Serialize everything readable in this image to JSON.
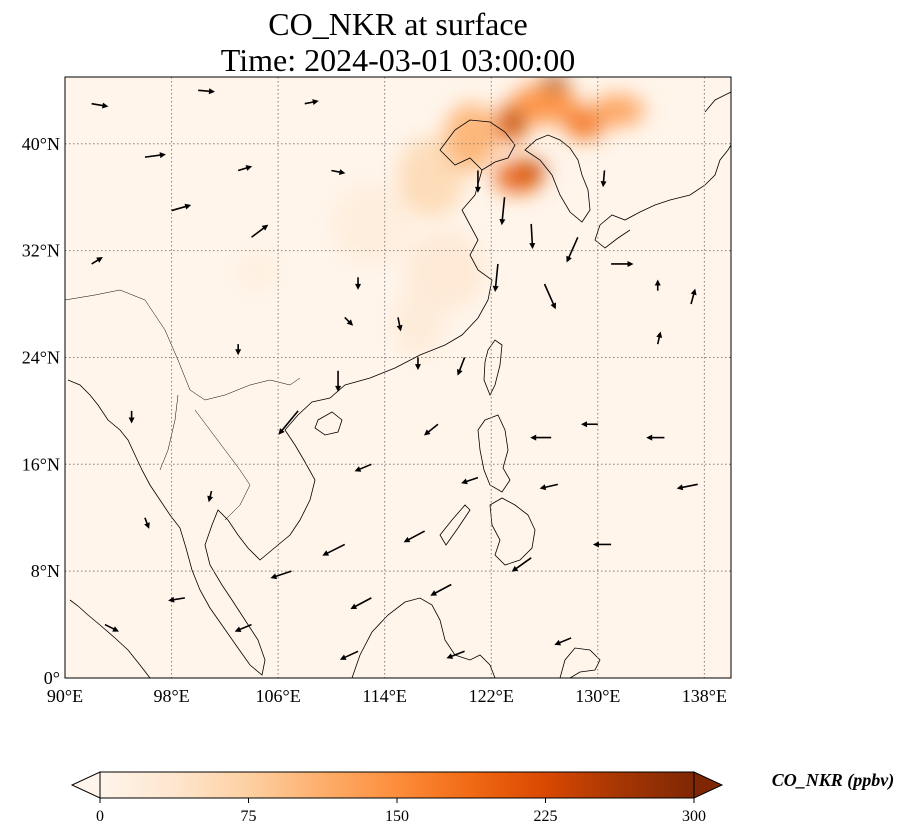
{
  "title": {
    "line1": "CO_NKR at surface",
    "line2": "Time: 2024-03-01 03:00:00"
  },
  "map": {
    "extent": {
      "lon": [
        90,
        140
      ],
      "lat": [
        0,
        45
      ]
    },
    "lon_ticks": [
      {
        "value": 90,
        "label": "90°E"
      },
      {
        "value": 98,
        "label": "98°E"
      },
      {
        "value": 106,
        "label": "106°E"
      },
      {
        "value": 114,
        "label": "114°E"
      },
      {
        "value": 122,
        "label": "122°E"
      },
      {
        "value": 130,
        "label": "130°E"
      },
      {
        "value": 138,
        "label": "138°E"
      }
    ],
    "lat_ticks": [
      {
        "value": 0,
        "label": "0°"
      },
      {
        "value": 8,
        "label": "8°N"
      },
      {
        "value": 16,
        "label": "16°N"
      },
      {
        "value": 24,
        "label": "24°N"
      },
      {
        "value": 32,
        "label": "32°N"
      },
      {
        "value": 40,
        "label": "40°N"
      }
    ],
    "gridlines": true,
    "colors": {
      "background": "#fff5eb",
      "coast": "#000000",
      "grid": "#808080",
      "wind": "#000000"
    },
    "plumes": [
      {
        "lon": 117.5,
        "lat": 37.5,
        "rlon": 2.5,
        "rlat": 3.0,
        "value": 60
      },
      {
        "lon": 120.5,
        "lat": 40.5,
        "rlon": 2.0,
        "rlat": 2.5,
        "value": 110
      },
      {
        "lon": 123.5,
        "lat": 41.5,
        "rlon": 1.2,
        "rlat": 1.5,
        "value": 180
      },
      {
        "lon": 123.7,
        "lat": 41.7,
        "rlon": 0.6,
        "rlat": 0.9,
        "value": 300
      },
      {
        "lon": 124.0,
        "lat": 37.5,
        "rlon": 1.8,
        "rlat": 1.2,
        "value": 200
      },
      {
        "lon": 125.0,
        "lat": 38.0,
        "rlon": 1.0,
        "rlat": 0.8,
        "value": 240
      },
      {
        "lon": 126.0,
        "lat": 43.0,
        "rlon": 2.5,
        "rlat": 1.5,
        "value": 150
      },
      {
        "lon": 126.8,
        "lat": 44.6,
        "rlon": 1.0,
        "rlat": 0.5,
        "value": 300
      },
      {
        "lon": 129.0,
        "lat": 41.5,
        "rlon": 1.5,
        "rlat": 1.2,
        "value": 180
      },
      {
        "lon": 131.5,
        "lat": 42.5,
        "rlon": 2.0,
        "rlat": 1.2,
        "value": 130
      },
      {
        "lon": 118.5,
        "lat": 30.5,
        "rlon": 3.0,
        "rlat": 3.0,
        "value": 30
      },
      {
        "lon": 113.0,
        "lat": 34.0,
        "rlon": 3.0,
        "rlat": 3.0,
        "value": 20
      },
      {
        "lon": 116.5,
        "lat": 26.5,
        "rlon": 2.0,
        "rlat": 2.5,
        "value": 25
      },
      {
        "lon": 104.5,
        "lat": 30.5,
        "rlon": 1.5,
        "rlat": 1.5,
        "value": 15
      }
    ],
    "wind_arrows": [
      {
        "lon": 92,
        "lat": 43,
        "u": 1.2,
        "v": -0.2
      },
      {
        "lon": 96,
        "lat": 39,
        "u": 1.5,
        "v": 0.2
      },
      {
        "lon": 100,
        "lat": 44,
        "u": 1.2,
        "v": -0.1
      },
      {
        "lon": 98,
        "lat": 35,
        "u": 1.4,
        "v": 0.4
      },
      {
        "lon": 92,
        "lat": 31,
        "u": 0.8,
        "v": 0.5
      },
      {
        "lon": 103,
        "lat": 38,
        "u": 1.0,
        "v": 0.3
      },
      {
        "lon": 104,
        "lat": 33,
        "u": 1.2,
        "v": 0.9
      },
      {
        "lon": 108,
        "lat": 43,
        "u": 1.0,
        "v": 0.2
      },
      {
        "lon": 110,
        "lat": 38,
        "u": 1.0,
        "v": -0.2
      },
      {
        "lon": 112,
        "lat": 30,
        "u": 0.0,
        "v": -0.9
      },
      {
        "lon": 115,
        "lat": 27,
        "u": 0.2,
        "v": -1.0
      },
      {
        "lon": 111,
        "lat": 27,
        "u": 0.6,
        "v": -0.6
      },
      {
        "lon": 121,
        "lat": 38,
        "u": 0.0,
        "v": -1.6
      },
      {
        "lon": 123,
        "lat": 36,
        "u": -0.2,
        "v": -2.0
      },
      {
        "lon": 125,
        "lat": 34,
        "u": 0.1,
        "v": -1.8
      },
      {
        "lon": 122.5,
        "lat": 31,
        "u": -0.2,
        "v": -2.0
      },
      {
        "lon": 126,
        "lat": 29.5,
        "u": 0.8,
        "v": -1.8
      },
      {
        "lon": 128.5,
        "lat": 33,
        "u": -0.8,
        "v": -1.8
      },
      {
        "lon": 130.5,
        "lat": 38,
        "u": -0.1,
        "v": -1.2
      },
      {
        "lon": 131,
        "lat": 31,
        "u": 1.6,
        "v": 0.0
      },
      {
        "lon": 134.5,
        "lat": 29,
        "u": 0.0,
        "v": 0.8
      },
      {
        "lon": 137,
        "lat": 28,
        "u": 0.3,
        "v": 1.1
      },
      {
        "lon": 134.5,
        "lat": 25,
        "u": 0.2,
        "v": 0.9
      },
      {
        "lon": 120,
        "lat": 24,
        "u": -0.5,
        "v": -1.3
      },
      {
        "lon": 116.5,
        "lat": 24,
        "u": 0.0,
        "v": -0.9
      },
      {
        "lon": 110.5,
        "lat": 23,
        "u": 0.0,
        "v": -1.5
      },
      {
        "lon": 107.5,
        "lat": 20,
        "u": -1.4,
        "v": -1.7
      },
      {
        "lon": 103,
        "lat": 25,
        "u": 0.0,
        "v": -0.8
      },
      {
        "lon": 95,
        "lat": 20,
        "u": 0.0,
        "v": -0.9
      },
      {
        "lon": 118,
        "lat": 19,
        "u": -1.0,
        "v": -0.8
      },
      {
        "lon": 113,
        "lat": 16,
        "u": -1.2,
        "v": -0.5
      },
      {
        "lon": 121,
        "lat": 15,
        "u": -1.2,
        "v": -0.4
      },
      {
        "lon": 126.5,
        "lat": 18,
        "u": -1.5,
        "v": 0.0
      },
      {
        "lon": 130,
        "lat": 19,
        "u": -1.2,
        "v": 0.0
      },
      {
        "lon": 135,
        "lat": 18,
        "u": -1.3,
        "v": 0.0
      },
      {
        "lon": 137.5,
        "lat": 14.5,
        "u": -1.5,
        "v": -0.3
      },
      {
        "lon": 127,
        "lat": 14.5,
        "u": -1.3,
        "v": -0.3
      },
      {
        "lon": 117,
        "lat": 11,
        "u": -1.5,
        "v": -0.8
      },
      {
        "lon": 111,
        "lat": 10,
        "u": -1.6,
        "v": -0.8
      },
      {
        "lon": 107,
        "lat": 8,
        "u": -1.5,
        "v": -0.5
      },
      {
        "lon": 113,
        "lat": 6,
        "u": -1.5,
        "v": -0.8
      },
      {
        "lon": 119,
        "lat": 7,
        "u": -1.5,
        "v": -0.8
      },
      {
        "lon": 125,
        "lat": 9,
        "u": -1.4,
        "v": -1.0
      },
      {
        "lon": 131,
        "lat": 10,
        "u": -1.3,
        "v": 0.0
      },
      {
        "lon": 99,
        "lat": 6,
        "u": -1.2,
        "v": -0.2
      },
      {
        "lon": 93,
        "lat": 4,
        "u": 1.0,
        "v": -0.5
      },
      {
        "lon": 104,
        "lat": 4,
        "u": -1.2,
        "v": -0.5
      },
      {
        "lon": 112,
        "lat": 2,
        "u": -1.3,
        "v": -0.6
      },
      {
        "lon": 120,
        "lat": 2,
        "u": -1.3,
        "v": -0.5
      },
      {
        "lon": 128,
        "lat": 3,
        "u": -1.2,
        "v": -0.5
      },
      {
        "lon": 96,
        "lat": 12,
        "u": 0.3,
        "v": -0.8
      },
      {
        "lon": 101,
        "lat": 14,
        "u": -0.2,
        "v": -0.8
      }
    ]
  },
  "colorbar": {
    "label": "CO_NKR (ppbv)",
    "range": [
      0,
      300
    ],
    "ticks": [
      "0",
      "75",
      "150",
      "225",
      "300"
    ],
    "extend": "both",
    "colormap": [
      "#fff5eb",
      "#fee6ce",
      "#fdd0a2",
      "#fdae6b",
      "#fd8d3c",
      "#f16913",
      "#d94801",
      "#a63603",
      "#7f2704"
    ]
  }
}
